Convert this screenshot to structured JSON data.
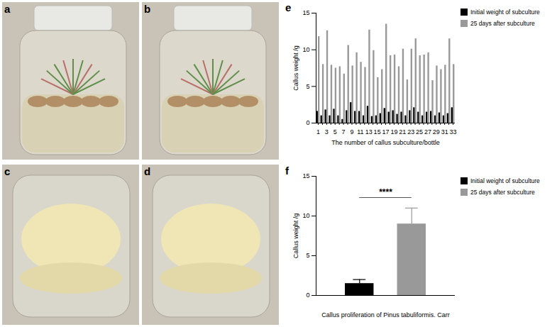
{
  "panels": {
    "labels": [
      "a",
      "b",
      "c",
      "d"
    ]
  },
  "chart_data": [
    {
      "type": "bar",
      "panel": "e",
      "x_label": "The number of callus subculture/bottle",
      "y_label": "Callus weight /g",
      "categories": [
        "1",
        null,
        "3",
        null,
        "5",
        null,
        "7",
        null,
        "9",
        null,
        "11",
        null,
        "13",
        null,
        "15",
        null,
        "17",
        null,
        "19",
        null,
        "21",
        null,
        "23",
        null,
        "25",
        null,
        "27",
        null,
        "29",
        null,
        "31",
        null,
        "33"
      ],
      "series": [
        {
          "name": "Initial weight of subculture",
          "color": "#000000",
          "values": [
            1.6,
            1.0,
            1.8,
            1.0,
            1.9,
            1.0,
            0.5,
            1.7,
            2.8,
            1.6,
            1.6,
            1.0,
            2.3,
            0.9,
            1.0,
            1.3,
            2.0,
            1.5,
            1.7,
            1.2,
            1.5,
            1.0,
            1.7,
            2.1,
            1.5,
            1.0,
            1.5,
            1.6,
            1.0,
            1.4,
            1.0,
            1.3,
            2.1
          ]
        },
        {
          "name": "25 days after subculture",
          "color": "#999999",
          "values": [
            11.8,
            8.0,
            12.6,
            7.9,
            7.5,
            7.7,
            6.7,
            10.6,
            7.8,
            9.6,
            8.3,
            7.6,
            12.7,
            9.9,
            6.2,
            7.3,
            13.5,
            9.2,
            9.3,
            7.7,
            10.1,
            5.9,
            10.1,
            11.5,
            9.2,
            9.3,
            9.6,
            5.8,
            7.8,
            7.3,
            7.9,
            11.5,
            8.0
          ]
        }
      ],
      "ylim": [
        0,
        15
      ],
      "yticks": [
        0,
        5,
        10,
        15
      ],
      "legend": "right"
    },
    {
      "type": "bar",
      "panel": "f",
      "x_label": "Callus proliferation of Pinus tabuliformis. Carr",
      "y_label": "Callus weight /g",
      "categories": [
        null
      ],
      "series": [
        {
          "name": "Initial weight of subculture",
          "color": "#000000",
          "values": [
            1.5
          ],
          "errors": [
            0.5
          ]
        },
        {
          "name": "25 days after subculture",
          "color": "#999999",
          "values": [
            9.0
          ],
          "errors": [
            2.0
          ]
        }
      ],
      "annotations": [
        {
          "text": "****"
        }
      ],
      "ylim": [
        0,
        15
      ],
      "yticks": [
        0,
        5,
        10,
        15
      ],
      "legend": "right",
      "tick_labels": "y"
    }
  ]
}
